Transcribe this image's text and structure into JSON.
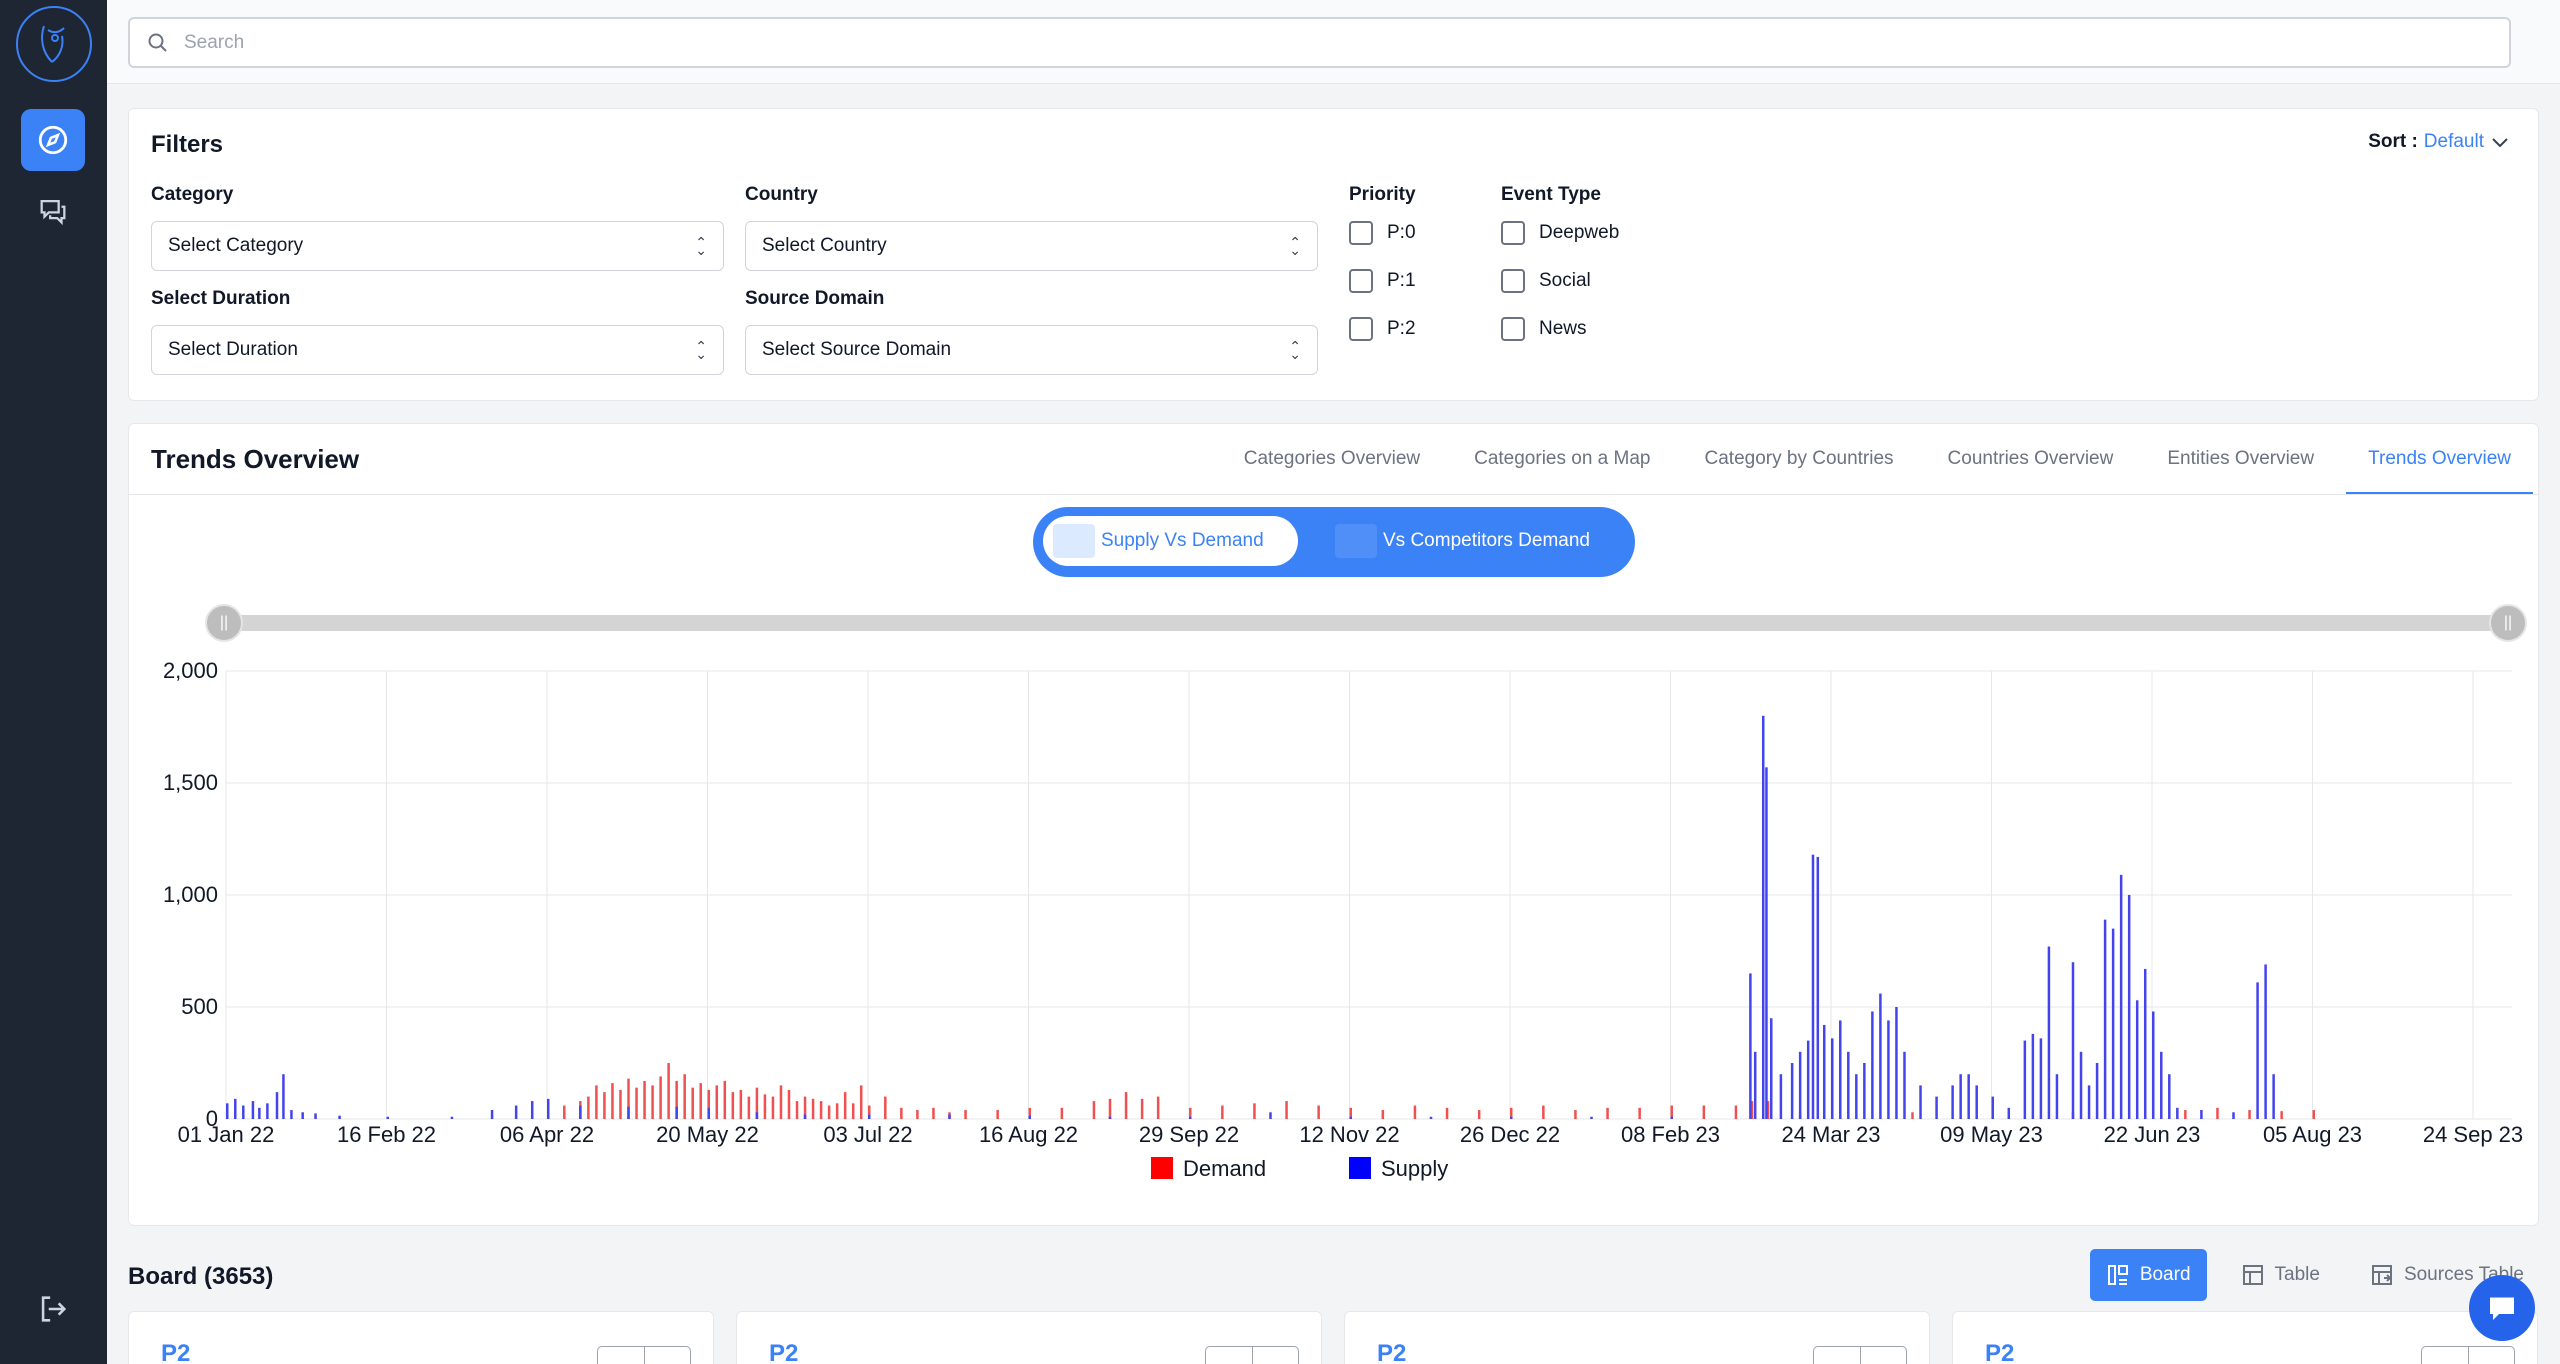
{
  "search": {
    "placeholder": "Search"
  },
  "filters": {
    "title": "Filters",
    "sort_label": "Sort :",
    "sort_value": "Default",
    "category": {
      "label": "Category",
      "value": "Select Category"
    },
    "country": {
      "label": "Country",
      "value": "Select Country"
    },
    "duration": {
      "label": "Select Duration",
      "value": "Select Duration"
    },
    "source_domain": {
      "label": "Source Domain",
      "value": "Select Source Domain"
    },
    "priority": {
      "label": "Priority",
      "options": [
        "P:0",
        "P:1",
        "P:2"
      ]
    },
    "event_type": {
      "label": "Event Type",
      "options": [
        "Deepweb",
        "Social",
        "News"
      ]
    }
  },
  "trends": {
    "title": "Trends Overview",
    "tabs": [
      "Categories Overview",
      "Categories on a Map",
      "Category by Countries",
      "Countries Overview",
      "Entities Overview",
      "Trends Overview"
    ],
    "active_tab": 5,
    "toggle": {
      "on": "Supply Vs Demand",
      "off": "Vs Competitors Demand"
    }
  },
  "chart_data": {
    "type": "bar",
    "yticks": [
      "0",
      "500",
      "1,000",
      "1,500",
      "2,000"
    ],
    "ylim": [
      0,
      2000
    ],
    "xticks": [
      "01 Jan 22",
      "16 Feb 22",
      "06 Apr 22",
      "20 May 22",
      "03 Jul 22",
      "16 Aug 22",
      "29 Sep 22",
      "12 Nov 22",
      "26 Dec 22",
      "08 Feb 23",
      "24 Mar 23",
      "09 May 23",
      "22 Jun 23",
      "05 Aug 23",
      "24 Sep 23"
    ],
    "legend": [
      {
        "name": "Demand",
        "color": "#ff0000"
      },
      {
        "name": "Supply",
        "color": "#0000ff"
      }
    ],
    "legend_position": "bottom",
    "grid": true,
    "series": [
      {
        "name": "Supply",
        "color": "#4444ee",
        "points": [
          [
            0.0,
            70
          ],
          [
            0.005,
            90
          ],
          [
            0.01,
            60
          ],
          [
            0.016,
            80
          ],
          [
            0.02,
            50
          ],
          [
            0.025,
            70
          ],
          [
            0.031,
            120
          ],
          [
            0.035,
            200
          ],
          [
            0.04,
            40
          ],
          [
            0.047,
            30
          ],
          [
            0.055,
            25
          ],
          [
            0.07,
            15
          ],
          [
            0.1,
            10
          ],
          [
            0.14,
            10
          ],
          [
            0.165,
            40
          ],
          [
            0.18,
            60
          ],
          [
            0.19,
            80
          ],
          [
            0.2,
            90
          ],
          [
            0.22,
            60
          ],
          [
            0.25,
            55
          ],
          [
            0.28,
            55
          ],
          [
            0.3,
            50
          ],
          [
            0.33,
            30
          ],
          [
            0.36,
            20
          ],
          [
            0.4,
            20
          ],
          [
            0.45,
            20
          ],
          [
            0.5,
            15
          ],
          [
            0.55,
            10
          ],
          [
            0.6,
            10
          ],
          [
            0.65,
            30
          ],
          [
            0.7,
            10
          ],
          [
            0.75,
            10
          ],
          [
            0.8,
            10
          ],
          [
            0.85,
            10
          ],
          [
            0.9,
            10
          ],
          [
            0.949,
            650
          ],
          [
            0.952,
            300
          ],
          [
            0.957,
            1800
          ],
          [
            0.959,
            1570
          ],
          [
            0.962,
            450
          ],
          [
            0.968,
            200
          ],
          [
            0.975,
            250
          ],
          [
            0.98,
            300
          ],
          [
            0.985,
            350
          ],
          [
            0.988,
            1180
          ],
          [
            0.991,
            1170
          ],
          [
            0.995,
            420
          ],
          [
            1.0,
            360
          ],
          [
            1.005,
            440
          ],
          [
            1.01,
            300
          ],
          [
            1.015,
            200
          ],
          [
            1.02,
            250
          ],
          [
            1.025,
            480
          ],
          [
            1.03,
            560
          ],
          [
            1.035,
            440
          ],
          [
            1.04,
            500
          ],
          [
            1.045,
            300
          ],
          [
            1.055,
            150
          ],
          [
            1.065,
            100
          ],
          [
            1.075,
            150
          ],
          [
            1.08,
            200
          ],
          [
            1.085,
            200
          ],
          [
            1.09,
            150
          ],
          [
            1.1,
            100
          ],
          [
            1.11,
            50
          ],
          [
            1.12,
            350
          ],
          [
            1.125,
            380
          ],
          [
            1.13,
            360
          ],
          [
            1.135,
            770
          ],
          [
            1.14,
            200
          ],
          [
            1.15,
            700
          ],
          [
            1.155,
            300
          ],
          [
            1.16,
            150
          ],
          [
            1.165,
            250
          ],
          [
            1.17,
            890
          ],
          [
            1.175,
            850
          ],
          [
            1.18,
            1090
          ],
          [
            1.185,
            1000
          ],
          [
            1.19,
            530
          ],
          [
            1.195,
            670
          ],
          [
            1.2,
            480
          ],
          [
            1.205,
            300
          ],
          [
            1.21,
            200
          ],
          [
            1.215,
            50
          ],
          [
            1.23,
            40
          ],
          [
            1.25,
            30
          ],
          [
            1.265,
            610
          ],
          [
            1.27,
            690
          ],
          [
            1.275,
            200
          ]
        ]
      },
      {
        "name": "Demand",
        "color": "#f05050",
        "points": [
          [
            0.2,
            50
          ],
          [
            0.21,
            60
          ],
          [
            0.22,
            80
          ],
          [
            0.225,
            100
          ],
          [
            0.23,
            150
          ],
          [
            0.235,
            120
          ],
          [
            0.24,
            160
          ],
          [
            0.245,
            130
          ],
          [
            0.25,
            180
          ],
          [
            0.255,
            140
          ],
          [
            0.26,
            170
          ],
          [
            0.265,
            150
          ],
          [
            0.27,
            190
          ],
          [
            0.275,
            250
          ],
          [
            0.28,
            170
          ],
          [
            0.285,
            200
          ],
          [
            0.29,
            140
          ],
          [
            0.295,
            160
          ],
          [
            0.3,
            130
          ],
          [
            0.305,
            150
          ],
          [
            0.31,
            170
          ],
          [
            0.315,
            120
          ],
          [
            0.32,
            130
          ],
          [
            0.325,
            100
          ],
          [
            0.33,
            140
          ],
          [
            0.335,
            110
          ],
          [
            0.34,
            100
          ],
          [
            0.345,
            150
          ],
          [
            0.35,
            130
          ],
          [
            0.355,
            80
          ],
          [
            0.36,
            100
          ],
          [
            0.365,
            90
          ],
          [
            0.37,
            80
          ],
          [
            0.375,
            60
          ],
          [
            0.38,
            70
          ],
          [
            0.385,
            120
          ],
          [
            0.39,
            70
          ],
          [
            0.395,
            150
          ],
          [
            0.4,
            60
          ],
          [
            0.41,
            100
          ],
          [
            0.42,
            50
          ],
          [
            0.43,
            40
          ],
          [
            0.44,
            50
          ],
          [
            0.45,
            30
          ],
          [
            0.46,
            40
          ],
          [
            0.48,
            40
          ],
          [
            0.5,
            50
          ],
          [
            0.52,
            50
          ],
          [
            0.54,
            80
          ],
          [
            0.55,
            90
          ],
          [
            0.56,
            120
          ],
          [
            0.57,
            90
          ],
          [
            0.58,
            100
          ],
          [
            0.6,
            50
          ],
          [
            0.62,
            60
          ],
          [
            0.64,
            70
          ],
          [
            0.66,
            80
          ],
          [
            0.68,
            60
          ],
          [
            0.7,
            50
          ],
          [
            0.72,
            40
          ],
          [
            0.74,
            60
          ],
          [
            0.76,
            50
          ],
          [
            0.78,
            40
          ],
          [
            0.8,
            50
          ],
          [
            0.82,
            60
          ],
          [
            0.84,
            40
          ],
          [
            0.86,
            50
          ],
          [
            0.88,
            50
          ],
          [
            0.9,
            60
          ],
          [
            0.92,
            60
          ],
          [
            0.94,
            60
          ],
          [
            0.95,
            80
          ],
          [
            0.96,
            80
          ],
          [
            0.98,
            30
          ],
          [
            1.0,
            25
          ],
          [
            1.05,
            30
          ],
          [
            1.1,
            20
          ],
          [
            1.15,
            30
          ],
          [
            1.2,
            30
          ],
          [
            1.22,
            40
          ],
          [
            1.24,
            50
          ],
          [
            1.26,
            40
          ],
          [
            1.28,
            35
          ],
          [
            1.3,
            40
          ]
        ]
      }
    ]
  },
  "board": {
    "title": "Board (3653)",
    "views": [
      "Board",
      "Table",
      "Sources Table"
    ],
    "active_view": 0,
    "cards": [
      "P2",
      "P2",
      "P2",
      "P2"
    ]
  }
}
